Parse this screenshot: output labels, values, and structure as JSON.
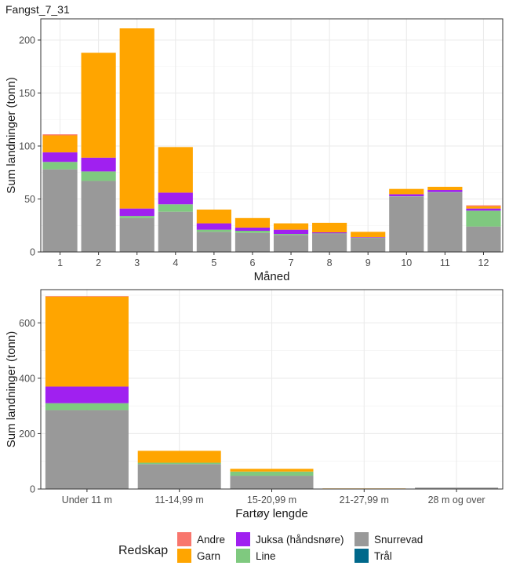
{
  "title": "Fangst_7_31",
  "colors": {
    "Andre": "#f8766d",
    "Garn": "#ffa500",
    "Juksa (håndsnøre)": "#a020f0",
    "Line": "#7fc97f",
    "Snurrevad": "#999999",
    "Trål": "#00688b"
  },
  "legend": {
    "title": "Redskap",
    "items": [
      "Andre",
      "Garn",
      "Juksa (håndsnøre)",
      "Line",
      "Snurrevad",
      "Trål"
    ]
  },
  "chart_data": [
    {
      "type": "bar",
      "stacked": true,
      "title": "Fangst_7_31",
      "xlabel": "Måned",
      "ylabel": "Sum landninger (tonn)",
      "ylim": [
        0,
        220
      ],
      "yticks": [
        0,
        50,
        100,
        150,
        200
      ],
      "grid": true,
      "categories": [
        "1",
        "2",
        "3",
        "4",
        "5",
        "6",
        "7",
        "8",
        "9",
        "10",
        "11",
        "12"
      ],
      "series": [
        {
          "name": "Snurrevad",
          "values": [
            78,
            67,
            32,
            38,
            19,
            18,
            16,
            17,
            13,
            52,
            56,
            24
          ]
        },
        {
          "name": "Line",
          "values": [
            7,
            9,
            2,
            7,
            2,
            2,
            1,
            0.5,
            0.5,
            0.5,
            0.5,
            15
          ]
        },
        {
          "name": "Juksa (håndsnøre)",
          "values": [
            9,
            13,
            7,
            11,
            6,
            3,
            4,
            1,
            0.5,
            2,
            2,
            2
          ]
        },
        {
          "name": "Garn",
          "values": [
            16,
            99,
            170,
            43,
            13,
            9,
            6,
            9,
            5,
            5,
            3,
            2
          ]
        },
        {
          "name": "Andre",
          "values": [
            1,
            0,
            0,
            0,
            0,
            0,
            0,
            0,
            0,
            0,
            0,
            1
          ]
        },
        {
          "name": "Trål",
          "values": [
            0,
            0,
            0,
            0,
            0,
            0,
            0,
            0,
            0,
            0,
            0,
            0
          ]
        }
      ]
    },
    {
      "type": "bar",
      "stacked": true,
      "xlabel": "Fartøy lengde",
      "ylabel": "Sum landninger (tonn)",
      "ylim": [
        0,
        720
      ],
      "yticks": [
        0,
        200,
        400,
        600
      ],
      "grid": true,
      "categories": [
        "Under 11 m",
        "11-14,99 m",
        "15-20,99 m",
        "21-27,99 m",
        "28 m og over"
      ],
      "series": [
        {
          "name": "Snurrevad",
          "values": [
            285,
            90,
            48,
            0,
            5
          ]
        },
        {
          "name": "Line",
          "values": [
            25,
            5,
            15,
            0,
            0
          ]
        },
        {
          "name": "Juksa (håndsnøre)",
          "values": [
            60,
            0,
            0,
            0,
            0
          ]
        },
        {
          "name": "Garn",
          "values": [
            325,
            43,
            10,
            2,
            0
          ]
        },
        {
          "name": "Andre",
          "values": [
            2,
            0,
            0,
            0,
            0
          ]
        },
        {
          "name": "Trål",
          "values": [
            0,
            0,
            0,
            0,
            0
          ]
        }
      ]
    }
  ]
}
